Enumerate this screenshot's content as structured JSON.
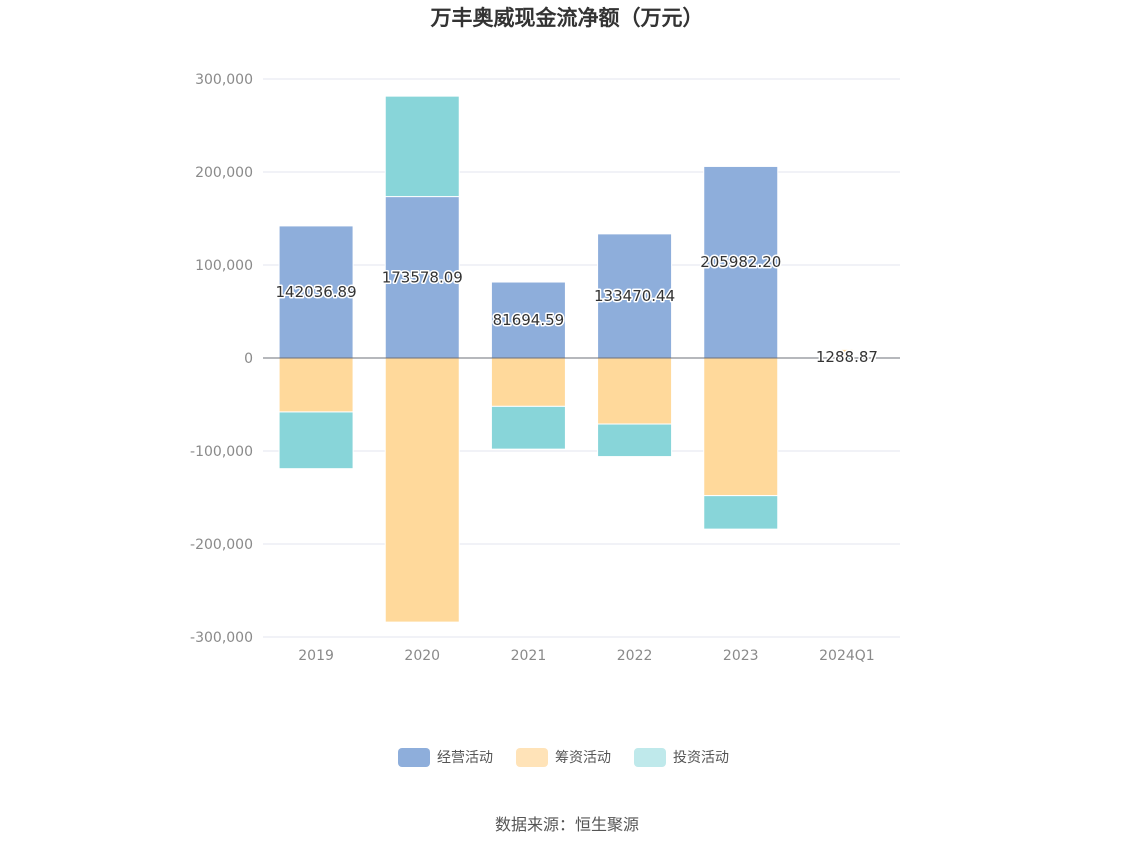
{
  "chart_data": {
    "type": "bar",
    "stacked": true,
    "title": "万丰奥威现金流净额（万元）",
    "categories": [
      "2019",
      "2020",
      "2021",
      "2022",
      "2023",
      "2024Q1"
    ],
    "series": [
      {
        "name": "经营活动",
        "color": "#8eaedb",
        "values": [
          142036.89,
          173578.09,
          81694.59,
          133470.44,
          205982.2,
          1288.87
        ]
      },
      {
        "name": "筹资活动",
        "color": "#ffd99b",
        "values": [
          -58000,
          -284000,
          -52000,
          -71000,
          -148000,
          8000
        ]
      },
      {
        "name": "投资活动",
        "color": "#88d5d9",
        "values": [
          -61000,
          108000,
          -46000,
          -35000,
          -36000,
          -3000
        ]
      }
    ],
    "data_labels": [
      "142036.89",
      "173578.09",
      "81694.59",
      "133470.44",
      "205982.20",
      "1288.87"
    ],
    "ylim": [
      -300000,
      300000
    ],
    "yticks": [
      300000,
      200000,
      100000,
      0,
      -100000,
      -200000,
      -300000
    ],
    "ytick_labels": [
      "300,000",
      "200,000",
      "100,000",
      "0",
      "-100,000",
      "-200,000",
      "-300,000"
    ],
    "grid": true,
    "legend_position": "bottom-center"
  },
  "legend": [
    {
      "label": "经营活动",
      "color": "#8eaedb"
    },
    {
      "label": "筹资活动",
      "color": "#ffe3b8"
    },
    {
      "label": "投资活动",
      "color": "#bfe9eb"
    }
  ],
  "source": "数据来源：恒生聚源"
}
